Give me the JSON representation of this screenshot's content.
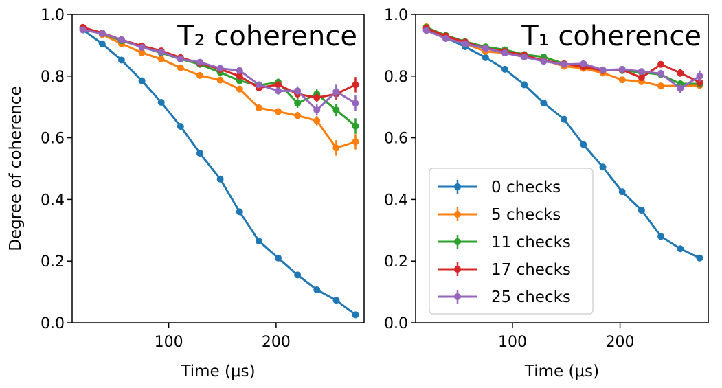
{
  "chart_data": [
    {
      "type": "line",
      "title": "T₂ coherence",
      "xlabel": "Time (μs)",
      "ylabel": "Degree of coherence",
      "xlim": [
        10,
        282
      ],
      "ylim": [
        0.0,
        1.0
      ],
      "xticks": [
        100,
        200
      ],
      "yticks": [
        "0.0",
        "0.2",
        "0.4",
        "0.6",
        "0.8",
        "1.0"
      ],
      "x": [
        20,
        38,
        56,
        75,
        93,
        111,
        129,
        148,
        166,
        184,
        202,
        220,
        238,
        256,
        274
      ],
      "series": [
        {
          "name": "0 checks",
          "color": "#1f77b4",
          "values": [
            0.95,
            0.905,
            0.852,
            0.785,
            0.715,
            0.637,
            0.55,
            0.466,
            0.36,
            0.265,
            0.21,
            0.155,
            0.107,
            0.073,
            0.026
          ],
          "errors": [
            0.004,
            0.004,
            0.004,
            0.004,
            0.004,
            0.004,
            0.004,
            0.004,
            0.004,
            0.004,
            0.004,
            0.004,
            0.004,
            0.004,
            0.004
          ]
        },
        {
          "name": "5 checks",
          "color": "#ff7f0e",
          "values": [
            0.958,
            0.935,
            0.905,
            0.876,
            0.855,
            0.827,
            0.802,
            0.787,
            0.758,
            0.697,
            0.685,
            0.672,
            0.655,
            0.567,
            0.587
          ],
          "errors": [
            0.006,
            0.006,
            0.006,
            0.006,
            0.006,
            0.006,
            0.006,
            0.008,
            0.008,
            0.01,
            0.01,
            0.012,
            0.015,
            0.025,
            0.025
          ]
        },
        {
          "name": "11 checks",
          "color": "#2ca02c",
          "values": [
            0.955,
            0.938,
            0.915,
            0.895,
            0.875,
            0.855,
            0.838,
            0.812,
            0.785,
            0.77,
            0.78,
            0.712,
            0.742,
            0.69,
            0.638
          ],
          "errors": [
            0.006,
            0.006,
            0.006,
            0.006,
            0.006,
            0.006,
            0.006,
            0.008,
            0.008,
            0.01,
            0.012,
            0.015,
            0.015,
            0.02,
            0.025
          ]
        },
        {
          "name": "17 checks",
          "color": "#d62728",
          "values": [
            0.958,
            0.94,
            0.918,
            0.898,
            0.882,
            0.86,
            0.842,
            0.822,
            0.8,
            0.762,
            0.772,
            0.742,
            0.73,
            0.742,
            0.772
          ],
          "errors": [
            0.006,
            0.006,
            0.006,
            0.006,
            0.006,
            0.006,
            0.006,
            0.008,
            0.008,
            0.01,
            0.012,
            0.015,
            0.015,
            0.018,
            0.025
          ]
        },
        {
          "name": "25 checks",
          "color": "#9467bd",
          "values": [
            0.95,
            0.938,
            0.918,
            0.893,
            0.878,
            0.855,
            0.845,
            0.825,
            0.818,
            0.772,
            0.752,
            0.752,
            0.69,
            0.75,
            0.712
          ],
          "errors": [
            0.006,
            0.006,
            0.006,
            0.006,
            0.006,
            0.006,
            0.006,
            0.008,
            0.008,
            0.01,
            0.012,
            0.015,
            0.018,
            0.022,
            0.025
          ]
        }
      ]
    },
    {
      "type": "line",
      "title": "T₁ coherence",
      "xlabel": "Time (μs)",
      "ylabel": "",
      "xlim": [
        10,
        282
      ],
      "ylim": [
        0.0,
        1.0
      ],
      "xticks": [
        100,
        200
      ],
      "yticks": [
        "0.0",
        "0.2",
        "0.4",
        "0.6",
        "0.8",
        "1.0"
      ],
      "x": [
        20,
        38,
        56,
        75,
        93,
        111,
        129,
        148,
        166,
        184,
        202,
        220,
        238,
        256,
        274
      ],
      "legend": {
        "location": "lower-left"
      },
      "series": [
        {
          "name": "0 checks",
          "color": "#1f77b4",
          "values": [
            0.95,
            0.925,
            0.895,
            0.86,
            0.822,
            0.772,
            0.713,
            0.66,
            0.578,
            0.505,
            0.425,
            0.365,
            0.28,
            0.24,
            0.21
          ],
          "errors": [
            0.004,
            0.004,
            0.004,
            0.004,
            0.004,
            0.004,
            0.004,
            0.004,
            0.004,
            0.004,
            0.004,
            0.004,
            0.004,
            0.004,
            0.004
          ]
        },
        {
          "name": "5 checks",
          "color": "#ff7f0e",
          "values": [
            0.96,
            0.925,
            0.905,
            0.88,
            0.875,
            0.862,
            0.852,
            0.832,
            0.825,
            0.81,
            0.788,
            0.782,
            0.768,
            0.768,
            0.77
          ],
          "errors": [
            0.006,
            0.006,
            0.006,
            0.006,
            0.006,
            0.006,
            0.006,
            0.008,
            0.008,
            0.008,
            0.01,
            0.01,
            0.01,
            0.01,
            0.012
          ]
        },
        {
          "name": "11 checks",
          "color": "#2ca02c",
          "values": [
            0.958,
            0.932,
            0.912,
            0.895,
            0.885,
            0.87,
            0.862,
            0.84,
            0.835,
            0.82,
            0.818,
            0.812,
            0.805,
            0.775,
            0.775
          ],
          "errors": [
            0.006,
            0.006,
            0.006,
            0.006,
            0.006,
            0.006,
            0.006,
            0.008,
            0.008,
            0.008,
            0.01,
            0.01,
            0.01,
            0.012,
            0.012
          ]
        },
        {
          "name": "17 checks",
          "color": "#d62728",
          "values": [
            0.955,
            0.93,
            0.91,
            0.89,
            0.88,
            0.868,
            0.85,
            0.84,
            0.83,
            0.818,
            0.82,
            0.795,
            0.838,
            0.81,
            0.78
          ],
          "errors": [
            0.006,
            0.006,
            0.006,
            0.006,
            0.006,
            0.006,
            0.006,
            0.008,
            0.008,
            0.008,
            0.01,
            0.01,
            0.01,
            0.012,
            0.015
          ]
        },
        {
          "name": "25 checks",
          "color": "#9467bd",
          "values": [
            0.948,
            0.922,
            0.905,
            0.89,
            0.875,
            0.862,
            0.848,
            0.838,
            0.84,
            0.82,
            0.822,
            0.815,
            0.808,
            0.76,
            0.8
          ],
          "errors": [
            0.006,
            0.006,
            0.006,
            0.006,
            0.006,
            0.006,
            0.006,
            0.008,
            0.008,
            0.008,
            0.01,
            0.01,
            0.012,
            0.015,
            0.018
          ]
        }
      ]
    }
  ]
}
